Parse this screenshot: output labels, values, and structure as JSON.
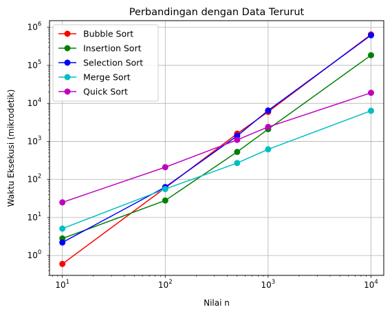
{
  "chart_data": {
    "type": "line",
    "title": "Perbandingan dengan Data Terurut",
    "xlabel": "Nilai n",
    "ylabel": "Waktu Eksekusi (mikrodetik)",
    "xscale": "log",
    "yscale": "log",
    "xlim": [
      7.5,
      13300
    ],
    "ylim": [
      0.3,
      1500000
    ],
    "grid": true,
    "legend_position": "top-left",
    "x": [
      10,
      100,
      500,
      1000,
      10000
    ],
    "x_ticks": [
      {
        "value": 10,
        "base": "10",
        "exp": "1"
      },
      {
        "value": 100,
        "base": "10",
        "exp": "2"
      },
      {
        "value": 1000,
        "base": "10",
        "exp": "3"
      },
      {
        "value": 10000,
        "base": "10",
        "exp": "4"
      }
    ],
    "y_ticks": [
      {
        "value": 1,
        "base": "10",
        "exp": "0"
      },
      {
        "value": 10,
        "base": "10",
        "exp": "1"
      },
      {
        "value": 100,
        "base": "10",
        "exp": "2"
      },
      {
        "value": 1000,
        "base": "10",
        "exp": "3"
      },
      {
        "value": 10000,
        "base": "10",
        "exp": "4"
      },
      {
        "value": 100000,
        "base": "10",
        "exp": "5"
      },
      {
        "value": 1000000,
        "base": "10",
        "exp": "6"
      }
    ],
    "series": [
      {
        "name": "Bubble Sort",
        "color": "#ff0000",
        "values": [
          0.6,
          60,
          1600,
          6000,
          650000
        ]
      },
      {
        "name": "Insertion Sort",
        "color": "#008000",
        "values": [
          2.8,
          28,
          530,
          2100,
          185000
        ]
      },
      {
        "name": "Selection Sort",
        "color": "#0000ff",
        "values": [
          2.2,
          63,
          1400,
          6500,
          620000
        ]
      },
      {
        "name": "Merge Sort",
        "color": "#00bfbf",
        "values": [
          5.1,
          56,
          270,
          620,
          6400
        ]
      },
      {
        "name": "Quick Sort",
        "color": "#bf00bf",
        "values": [
          25,
          210,
          1100,
          2400,
          19000
        ]
      }
    ]
  }
}
